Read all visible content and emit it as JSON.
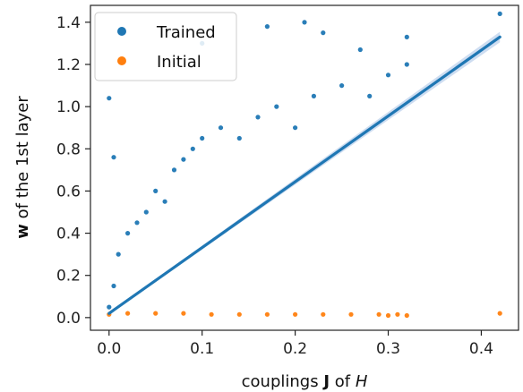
{
  "chart_data": {
    "type": "scatter",
    "xlabel": {
      "prefix": "couplings ",
      "bold": "J",
      "middle": " of ",
      "italic": "H"
    },
    "ylabel": {
      "bold": "w",
      "suffix": " of the 1st layer"
    },
    "xlim": [
      -0.02,
      0.44
    ],
    "ylim": [
      -0.06,
      1.48
    ],
    "xticks": [
      0.0,
      0.1,
      0.2,
      0.3,
      0.4
    ],
    "xtick_labels": [
      "0.0",
      "0.1",
      "0.2",
      "0.3",
      "0.4"
    ],
    "yticks": [
      0.0,
      0.2,
      0.4,
      0.6,
      0.8,
      1.0,
      1.2,
      1.4
    ],
    "ytick_labels": [
      "0.0",
      "0.2",
      "0.4",
      "0.6",
      "0.8",
      "1.0",
      "1.2",
      "1.4"
    ],
    "grid": false,
    "legend_position": "top-left",
    "series": [
      {
        "name": "Trained",
        "color": "#1f77b4",
        "x": [
          0.0,
          0.005,
          0.01,
          0.02,
          0.03,
          0.04,
          0.05,
          0.06,
          0.07,
          0.08,
          0.09,
          0.1,
          0.12,
          0.14,
          0.16,
          0.18,
          0.2,
          0.22,
          0.25,
          0.28,
          0.3,
          0.32,
          0.42,
          0.0,
          0.005,
          0.1,
          0.17,
          0.21,
          0.23,
          0.27,
          0.32
        ],
        "y": [
          0.05,
          0.15,
          0.3,
          0.4,
          0.45,
          0.5,
          0.6,
          0.55,
          0.7,
          0.75,
          0.8,
          0.85,
          0.9,
          0.85,
          0.95,
          1.0,
          0.9,
          1.05,
          1.1,
          1.05,
          1.15,
          1.2,
          1.44,
          1.04,
          0.76,
          1.3,
          1.38,
          1.4,
          1.35,
          1.27,
          1.33
        ]
      },
      {
        "name": "Initial",
        "color": "#ff7f0e",
        "x": [
          0.0,
          0.02,
          0.05,
          0.08,
          0.11,
          0.14,
          0.17,
          0.2,
          0.23,
          0.26,
          0.29,
          0.3,
          0.31,
          0.32,
          0.42
        ],
        "y": [
          0.015,
          0.02,
          0.02,
          0.02,
          0.015,
          0.015,
          0.015,
          0.015,
          0.015,
          0.015,
          0.015,
          0.01,
          0.015,
          0.01,
          0.02
        ]
      }
    ],
    "fit_line": {
      "color": "#1f77b4",
      "band_color": "#aec7e8",
      "x": [
        0.0,
        0.42
      ],
      "y": [
        0.02,
        1.33
      ],
      "band_halfwidth": [
        0.004,
        0.025
      ]
    }
  }
}
